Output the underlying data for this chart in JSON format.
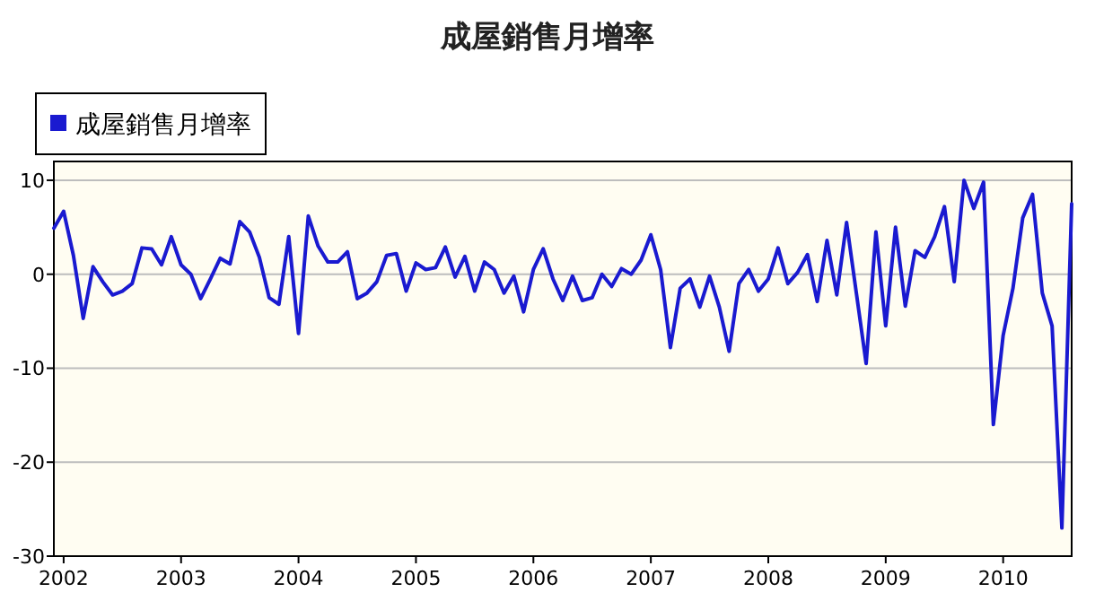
{
  "chart_data": {
    "type": "line",
    "title": "成屋銷售月增率",
    "x": [
      "2001-12",
      "2002-01",
      "2002-02",
      "2002-03",
      "2002-04",
      "2002-05",
      "2002-06",
      "2002-07",
      "2002-08",
      "2002-09",
      "2002-10",
      "2002-11",
      "2002-12",
      "2003-01",
      "2003-02",
      "2003-03",
      "2003-04",
      "2003-05",
      "2003-06",
      "2003-07",
      "2003-08",
      "2003-09",
      "2003-10",
      "2003-11",
      "2003-12",
      "2004-01",
      "2004-02",
      "2004-03",
      "2004-04",
      "2004-05",
      "2004-06",
      "2004-07",
      "2004-08",
      "2004-09",
      "2004-10",
      "2004-11",
      "2004-12",
      "2005-01",
      "2005-02",
      "2005-03",
      "2005-04",
      "2005-05",
      "2005-06",
      "2005-07",
      "2005-08",
      "2005-09",
      "2005-10",
      "2005-11",
      "2005-12",
      "2006-01",
      "2006-02",
      "2006-03",
      "2006-04",
      "2006-05",
      "2006-06",
      "2006-07",
      "2006-08",
      "2006-09",
      "2006-10",
      "2006-11",
      "2006-12",
      "2007-01",
      "2007-02",
      "2007-03",
      "2007-04",
      "2007-05",
      "2007-06",
      "2007-07",
      "2007-08",
      "2007-09",
      "2007-10",
      "2007-11",
      "2007-12",
      "2008-01",
      "2008-02",
      "2008-03",
      "2008-04",
      "2008-05",
      "2008-06",
      "2008-07",
      "2008-08",
      "2008-09",
      "2008-10",
      "2008-11",
      "2008-12",
      "2009-01",
      "2009-02",
      "2009-03",
      "2009-04",
      "2009-05",
      "2009-06",
      "2009-07",
      "2009-08",
      "2009-09",
      "2009-10",
      "2009-11",
      "2009-12",
      "2010-01",
      "2010-02",
      "2010-03",
      "2010-04",
      "2010-05",
      "2010-06",
      "2010-07",
      "2010-08"
    ],
    "series": [
      {
        "name": "成屋銷售月增率",
        "color": "#1a1ad0",
        "values": [
          4.9,
          6.7,
          2.0,
          -4.7,
          0.8,
          -0.8,
          -2.2,
          -1.8,
          -1.0,
          2.8,
          2.7,
          1.0,
          4.0,
          1.0,
          0.0,
          -2.6,
          -0.5,
          1.7,
          1.1,
          5.6,
          4.5,
          1.8,
          -2.5,
          -3.2,
          4.0,
          -6.3,
          6.2,
          3.0,
          1.3,
          1.3,
          2.4,
          -2.6,
          -2.0,
          -0.8,
          2.0,
          2.2,
          -1.8,
          1.2,
          0.5,
          0.7,
          2.9,
          -0.3,
          1.9,
          -1.8,
          1.3,
          0.5,
          -2.0,
          -0.2,
          -4.0,
          0.5,
          2.7,
          -0.5,
          -2.8,
          -0.2,
          -2.8,
          -2.5,
          0.0,
          -1.3,
          0.6,
          0.0,
          1.5,
          4.2,
          0.5,
          -7.8,
          -1.5,
          -0.5,
          -3.5,
          -0.2,
          -3.5,
          -8.2,
          -1.0,
          0.5,
          -1.8,
          -0.5,
          2.8,
          -1.0,
          0.2,
          2.1,
          -2.9,
          3.6,
          -2.2,
          5.5,
          -2.0,
          -9.5,
          4.5,
          -5.5,
          5.0,
          -3.4,
          2.5,
          1.8,
          4.0,
          7.2,
          -0.8,
          10.0,
          7.0,
          9.8,
          -16.0,
          -6.5,
          -1.5,
          6.0,
          8.5,
          -2.0,
          -5.5,
          -27.0,
          7.5
        ]
      }
    ],
    "xlim": [
      "2001-12",
      "2010-08"
    ],
    "xticks": [
      {
        "value": "2002-01",
        "label": "2002"
      },
      {
        "value": "2003-01",
        "label": "2003"
      },
      {
        "value": "2004-01",
        "label": "2004"
      },
      {
        "value": "2005-01",
        "label": "2005"
      },
      {
        "value": "2006-01",
        "label": "2006"
      },
      {
        "value": "2007-01",
        "label": "2007"
      },
      {
        "value": "2008-01",
        "label": "2008"
      },
      {
        "value": "2009-01",
        "label": "2009"
      },
      {
        "value": "2010-01",
        "label": "2010"
      }
    ],
    "ylim": [
      -30,
      12
    ],
    "yticks": [
      -30,
      -20,
      -10,
      0,
      10
    ],
    "grid": "y",
    "legend": "top left",
    "marker": "none",
    "line_style": "solid"
  }
}
